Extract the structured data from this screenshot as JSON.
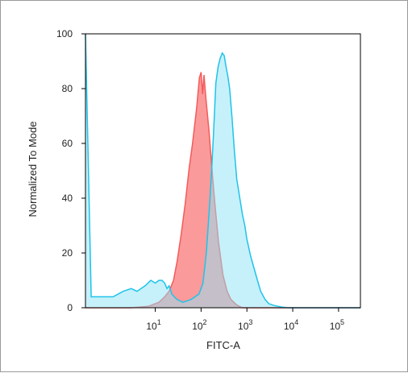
{
  "chart_data": {
    "type": "area",
    "title": "",
    "xlabel": "FITC-A",
    "ylabel": "Normalized To Mode",
    "xscale": "log",
    "xlim": [
      0.3,
      300000
    ],
    "ylim": [
      0,
      100
    ],
    "x_ticks": [
      {
        "value": 10,
        "base": "10",
        "exp": "1"
      },
      {
        "value": 100,
        "base": "10",
        "exp": "2"
      },
      {
        "value": 1000,
        "base": "10",
        "exp": "3"
      },
      {
        "value": 10000,
        "base": "10",
        "exp": "4"
      },
      {
        "value": 100000,
        "base": "10",
        "exp": "5"
      }
    ],
    "y_ticks": [
      "0",
      "20",
      "40",
      "60",
      "80",
      "100"
    ],
    "grid": false,
    "legend": "none",
    "series": [
      {
        "color": "#f45b5b",
        "fill": "#fb9a9a",
        "points": [
          [
            0.3,
            0
          ],
          [
            3,
            0
          ],
          [
            7,
            0.5
          ],
          [
            12,
            2
          ],
          [
            16,
            4
          ],
          [
            20,
            6
          ],
          [
            25,
            10
          ],
          [
            30,
            17
          ],
          [
            37,
            27
          ],
          [
            45,
            38
          ],
          [
            55,
            51
          ],
          [
            65,
            60
          ],
          [
            80,
            73
          ],
          [
            92,
            84
          ],
          [
            100,
            86
          ],
          [
            108,
            78
          ],
          [
            116,
            85
          ],
          [
            125,
            78
          ],
          [
            135,
            72
          ],
          [
            150,
            64
          ],
          [
            170,
            52
          ],
          [
            200,
            38
          ],
          [
            240,
            24
          ],
          [
            300,
            12
          ],
          [
            370,
            6
          ],
          [
            450,
            3
          ],
          [
            600,
            1
          ],
          [
            800,
            0
          ],
          [
            300000,
            0
          ]
        ]
      },
      {
        "color": "#1ec3ea",
        "fill": "#8ee3f6",
        "points": [
          [
            0.3,
            100
          ],
          [
            0.4,
            4
          ],
          [
            0.7,
            4
          ],
          [
            1.2,
            4
          ],
          [
            2,
            6
          ],
          [
            3,
            7
          ],
          [
            4,
            6
          ],
          [
            6,
            8
          ],
          [
            8,
            10
          ],
          [
            10,
            9
          ],
          [
            12,
            10
          ],
          [
            14,
            10
          ],
          [
            16,
            9
          ],
          [
            18,
            7
          ],
          [
            20,
            8
          ],
          [
            23,
            5
          ],
          [
            26,
            4
          ],
          [
            30,
            3
          ],
          [
            40,
            2
          ],
          [
            60,
            3
          ],
          [
            90,
            5
          ],
          [
            110,
            9
          ],
          [
            130,
            20
          ],
          [
            150,
            35
          ],
          [
            170,
            50
          ],
          [
            190,
            66
          ],
          [
            210,
            82
          ],
          [
            235,
            88
          ],
          [
            260,
            91
          ],
          [
            290,
            93
          ],
          [
            320,
            92
          ],
          [
            350,
            88
          ],
          [
            380,
            85
          ],
          [
            420,
            80
          ],
          [
            470,
            70
          ],
          [
            530,
            58
          ],
          [
            600,
            47
          ],
          [
            700,
            40
          ],
          [
            800,
            34
          ],
          [
            900,
            30
          ],
          [
            1000,
            25
          ],
          [
            1200,
            19
          ],
          [
            1400,
            15
          ],
          [
            1700,
            10
          ],
          [
            2000,
            6
          ],
          [
            2500,
            3
          ],
          [
            3000,
            1.5
          ],
          [
            4000,
            0.8
          ],
          [
            6000,
            0.2
          ],
          [
            8000,
            0
          ],
          [
            300000,
            0
          ]
        ]
      }
    ]
  }
}
